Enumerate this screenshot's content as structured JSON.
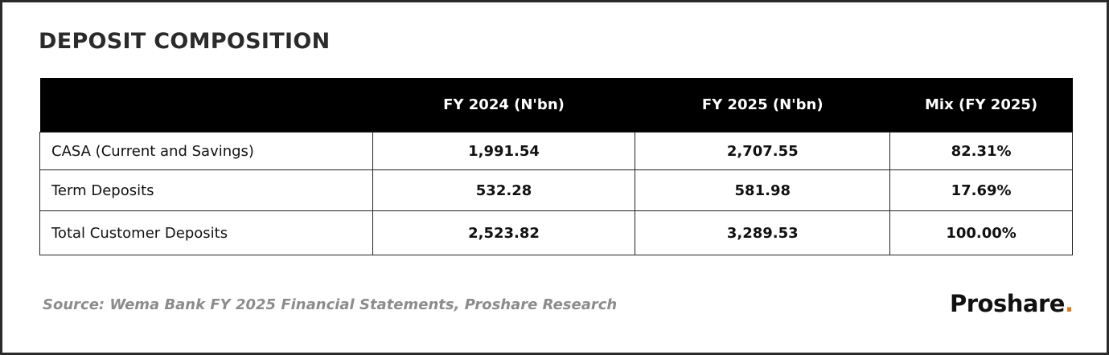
{
  "header": {
    "title": "DEPOSIT COMPOSITION"
  },
  "table": {
    "columns": [
      "FY 2024 (N'bn)",
      "FY 2025 (N'bn)",
      "Mix (FY 2025)"
    ],
    "rows": [
      [
        "CASA (Current  and Savings)",
        "1,991.54",
        "2,707.55",
        "82.31%"
      ],
      [
        "Term Deposits",
        "532.28",
        "581.98",
        "17.69%"
      ],
      [
        "Total Customer Deposits",
        "2,523.82",
        "3,289.53",
        "100.00%"
      ]
    ]
  },
  "footer": {
    "source": "Source: Wema Bank FY 2025 Financial Statements, Proshare Research",
    "logo": {
      "text": "Proshare",
      "dot": "."
    }
  }
}
